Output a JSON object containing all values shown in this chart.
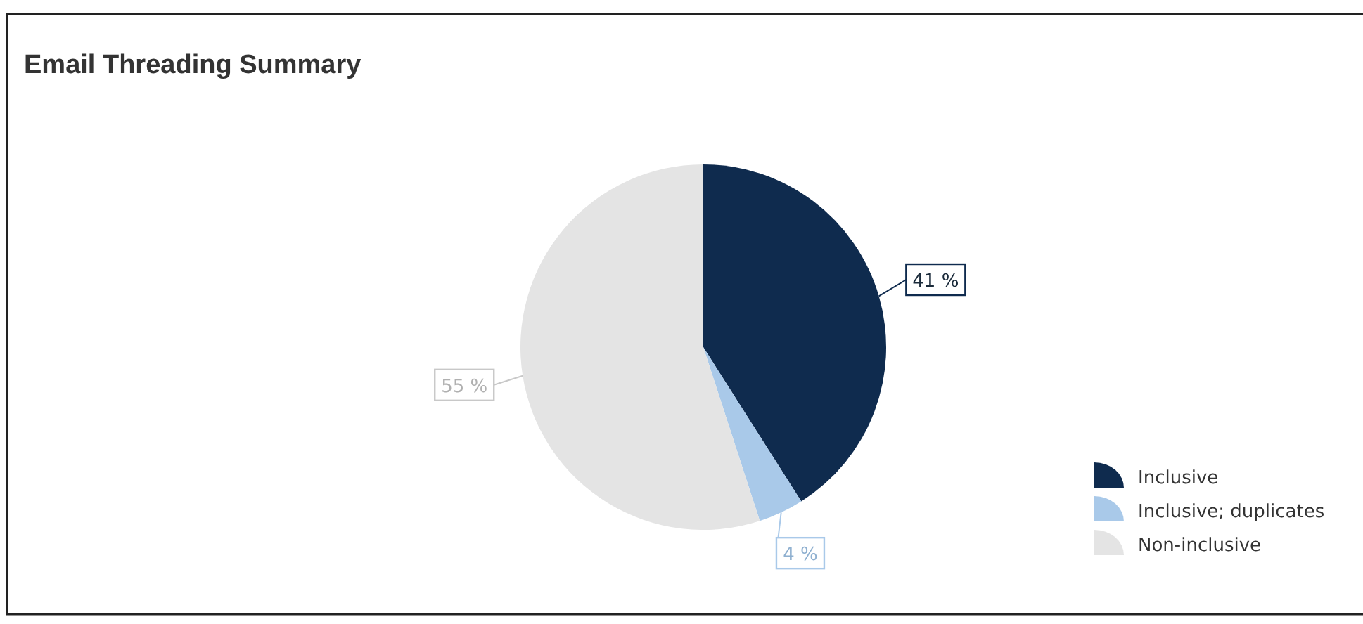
{
  "chart_data": {
    "type": "pie",
    "title": "Email Threading Summary",
    "categories": [
      "Inclusive",
      "Inclusive; duplicates",
      "Non-inclusive"
    ],
    "values": [
      41,
      4,
      55
    ],
    "colors": [
      "#0f2b4e",
      "#a9c9e9",
      "#e4e4e4"
    ],
    "value_labels": [
      "41 %",
      "4 %",
      "55 %"
    ],
    "legend": "bottom right"
  }
}
